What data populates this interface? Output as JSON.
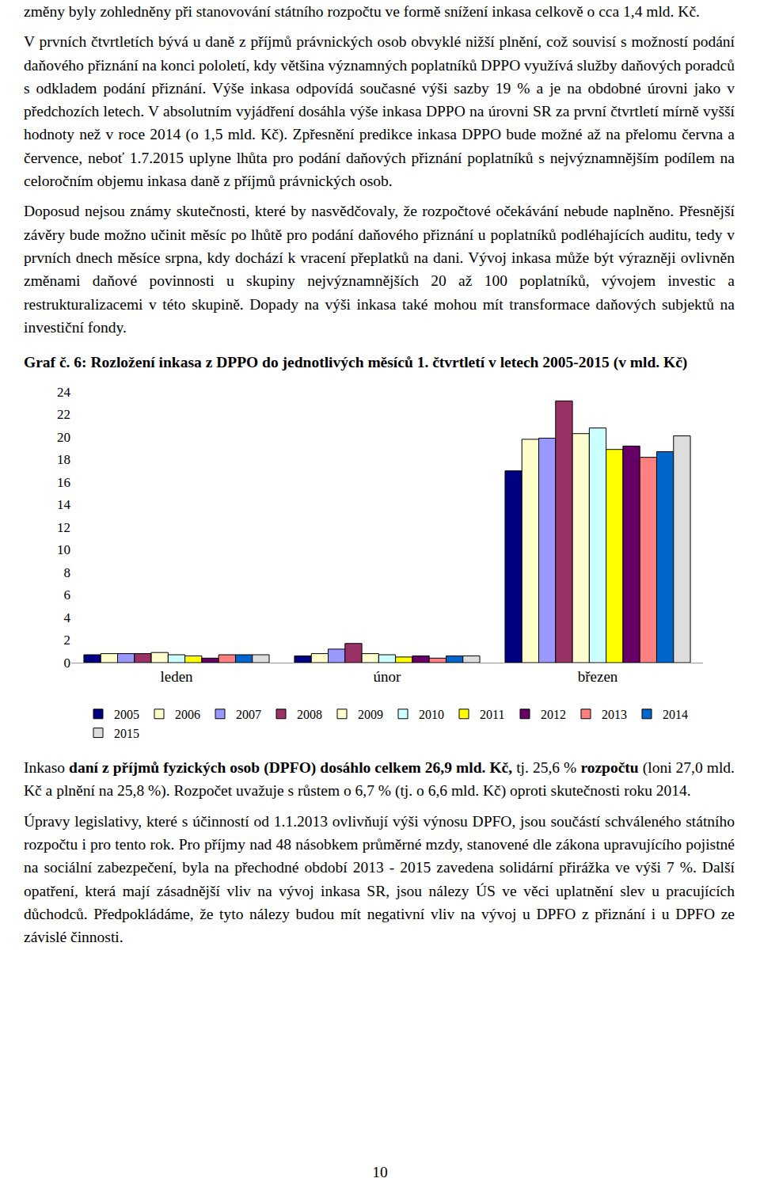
{
  "document": {
    "paragraphs_before": [
      [
        {
          "text": "změny byly zohledněny při stanovování státního rozpočtu ve formě snížení inkasa celkově o cca 1,4 mld. Kč.",
          "bold": false
        }
      ],
      [
        {
          "text": "V prvních čtvrtletích bývá u daně z příjmů právnických osob obvyklé nižší plnění, což souvisí s možností podání daňového přiznání na konci pololetí, kdy většina významných poplatníků DPPO využívá služby daňových poradců s odkladem podání přiznání. Výše inkasa odpovídá současné výši sazby 19 % a je na obdobné úrovni jako v předchozích letech. V absolutním vyjádření dosáhla výše inkasa DPPO na úrovni SR za první čtvrtletí mírně vyšší hodnoty než v roce 2014 (o 1,5 mld. Kč). Zpřesnění predikce inkasa DPPO bude možné až na přelomu června a července, neboť 1.7.2015 uplyne lhůta pro podání daňových přiznání poplatníků s nejvýznamnějším podílem na celoročním objemu inkasa daně z příjmů právnických osob.",
          "bold": false
        }
      ],
      [
        {
          "text": "Doposud nejsou známy skutečnosti, které by nasvědčovaly, že rozpočtové očekávání nebude naplněno. Přesnější závěry bude možno učinit měsíc po lhůtě pro podání daňového přiznání u poplatníků podléhajících auditu, tedy v prvních dnech měsíce srpna, kdy dochází k vracení přeplatků na dani. Vývoj inkasa může být výrazněji ovlivněn změnami daňové povinnosti u skupiny nejvýznamnějších 20 až 100 poplatníků, vývojem investic a restrukturalizacemi v této skupině. Dopady na výši inkasa také mohou mít transformace daňových subjektů na investiční fondy.",
          "bold": false
        }
      ]
    ],
    "paragraphs_after": [
      [
        {
          "text": "Inkaso ",
          "bold": false
        },
        {
          "text": "daní z příjmů fyzických osob (DPFO) dosáhlo celkem 26,9 mld. Kč,",
          "bold": true
        },
        {
          "text": " tj. 25,6 % ",
          "bold": false
        },
        {
          "text": "rozpočtu",
          "bold": true
        },
        {
          "text": " (loni 27,0 mld. Kč a plnění na 25,8 %). Rozpočet uvažuje s růstem o 6,7 % (tj. o 6,6 mld. Kč) oproti skutečnosti roku 2014.",
          "bold": false
        }
      ],
      [
        {
          "text": "Úpravy legislativy, které s účinností od 1.1.2013 ovlivňují výši výnosu DPFO, jsou součástí schváleného státního rozpočtu i pro tento rok. Pro příjmy nad 48 násobkem průměrné mzdy, stanovené dle zákona upravujícího pojistné na sociální zabezpečení, byla na přechodné období 2013 - 2015 zavedena solidární přirážka ve výši 7 %. Další opatření, která mají zásadnější vliv na vývoj inkasa SR, jsou nálezy ÚS ve věci uplatnění slev u pracujících důchodců. Předpokládáme, že tyto nálezy budou mít negativní vliv na vývoj u DPFO z přiznání i u DPFO ze závislé činnosti.",
          "bold": false
        }
      ]
    ],
    "page_number": "10"
  },
  "chart_data": {
    "type": "bar",
    "title": "Graf č. 6: Rozložení inkasa z DPPO do jednotlivých měsíců 1. čtvrtletí v letech 2005-2015 (v mld. Kč)",
    "categories": [
      "leden",
      "únor",
      "březen"
    ],
    "series": [
      {
        "name": "2005",
        "color": "#000080",
        "values": [
          0.7,
          0.6,
          17.0
        ]
      },
      {
        "name": "2006",
        "color": "#FFFFCC",
        "values": [
          0.8,
          0.8,
          19.8
        ]
      },
      {
        "name": "2007",
        "color": "#9999FF",
        "values": [
          0.8,
          1.2,
          19.9
        ]
      },
      {
        "name": "2008",
        "color": "#993366",
        "values": [
          0.8,
          1.7,
          23.2
        ]
      },
      {
        "name": "2009",
        "color": "#FFFFD0",
        "values": [
          0.9,
          0.8,
          20.3
        ]
      },
      {
        "name": "2010",
        "color": "#CCFFFF",
        "values": [
          0.7,
          0.7,
          20.8
        ]
      },
      {
        "name": "2011",
        "color": "#FFFF00",
        "values": [
          0.6,
          0.5,
          18.9
        ]
      },
      {
        "name": "2012",
        "color": "#660066",
        "values": [
          0.4,
          0.6,
          19.2
        ]
      },
      {
        "name": "2013",
        "color": "#FF8080",
        "values": [
          0.7,
          0.4,
          18.2
        ]
      },
      {
        "name": "2014",
        "color": "#0066CC",
        "values": [
          0.7,
          0.6,
          18.7
        ]
      },
      {
        "name": "2015",
        "color": "#DDDDDD",
        "values": [
          0.7,
          0.6,
          20.1
        ]
      }
    ],
    "ylim": [
      0,
      24
    ],
    "yticks": [
      0,
      2,
      4,
      6,
      8,
      10,
      12,
      14,
      16,
      18,
      20,
      22,
      24
    ],
    "grid": false,
    "legend": "bottom"
  }
}
